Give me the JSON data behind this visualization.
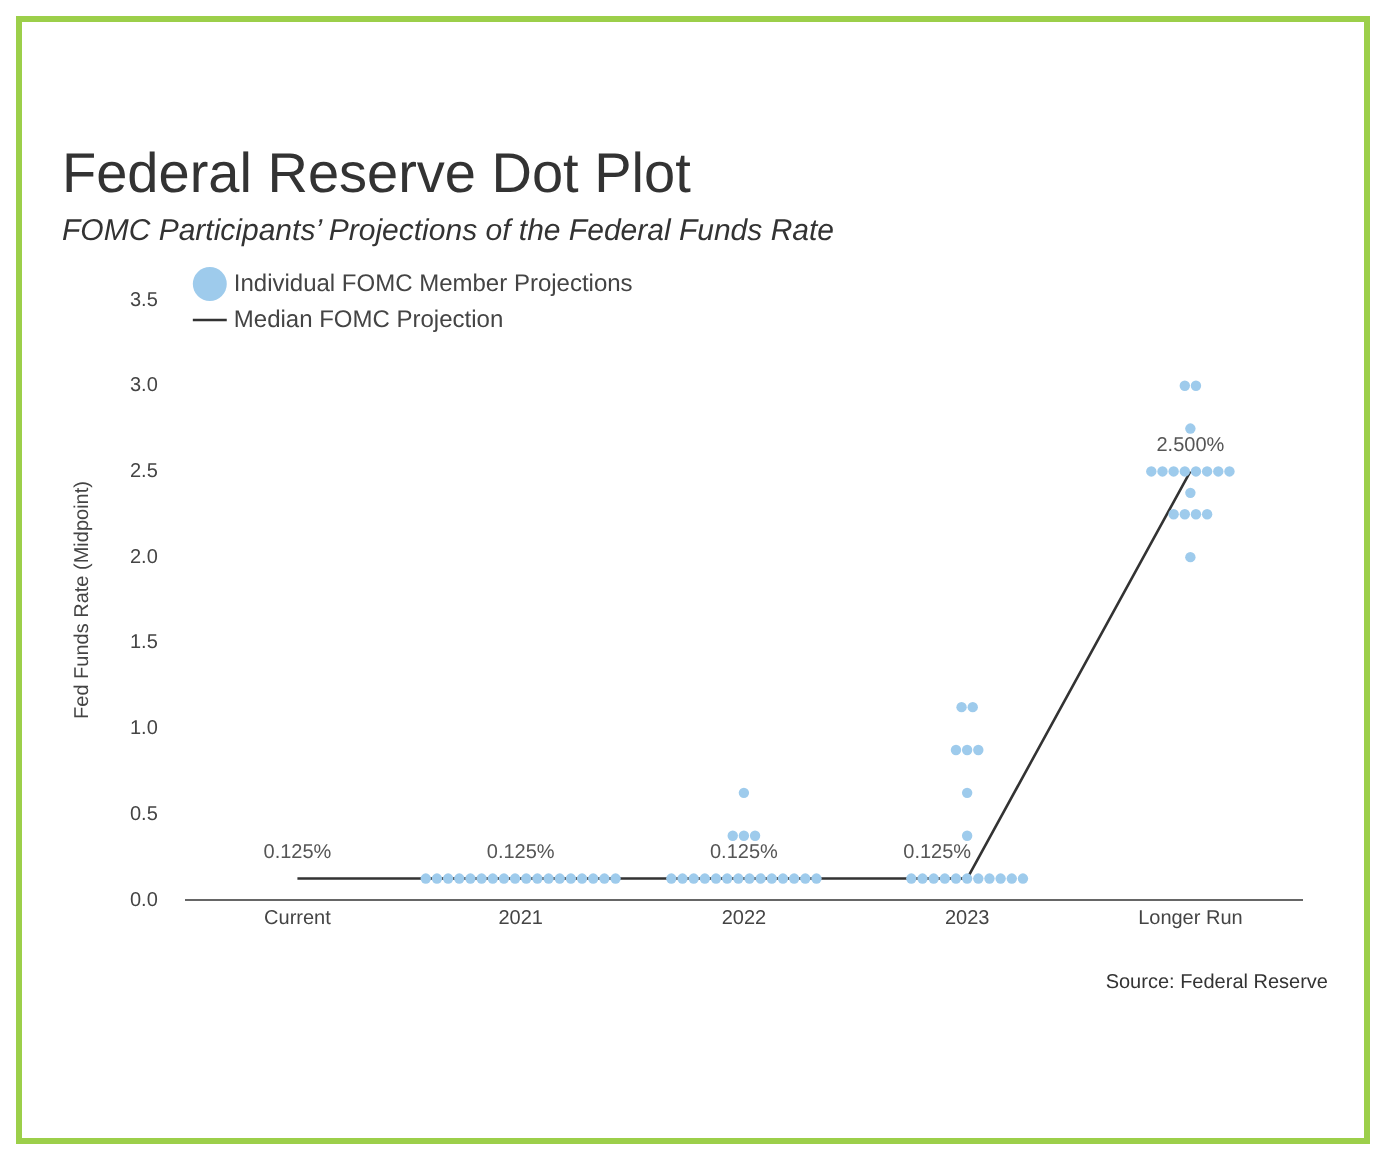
{
  "chart_data": {
    "type": "scatter",
    "title": "Federal Reserve Dot Plot",
    "subtitle": "FOMC Participants’ Projections of the Federal Funds Rate",
    "ylabel": "Fed Funds Rate (Midpoint)",
    "categories": [
      "Current",
      "2021",
      "2022",
      "2023",
      "Longer Run"
    ],
    "series": [
      {
        "name": "Individual FOMC Member Projections",
        "type": "scatter",
        "marker": "circle",
        "color": "#9ecbec",
        "values": [
          null,
          0.125,
          0.125,
          0.125,
          2.0
        ]
      },
      {
        "type": "scatter",
        "marker": "circle",
        "color": "#9ecbec",
        "values": [
          null,
          0.125,
          0.125,
          0.125,
          2.25
        ]
      },
      {
        "type": "scatter",
        "marker": "circle",
        "color": "#9ecbec",
        "values": [
          null,
          0.125,
          0.125,
          0.125,
          2.25
        ]
      },
      {
        "type": "scatter",
        "marker": "circle",
        "color": "#9ecbec",
        "values": [
          null,
          0.125,
          0.125,
          0.125,
          2.25
        ]
      },
      {
        "type": "scatter",
        "marker": "circle",
        "color": "#9ecbec",
        "values": [
          null,
          0.125,
          0.125,
          0.125,
          2.25
        ]
      },
      {
        "type": "scatter",
        "marker": "circle",
        "color": "#9ecbec",
        "values": [
          null,
          0.125,
          0.125,
          0.125,
          2.375
        ]
      },
      {
        "type": "scatter",
        "marker": "circle",
        "color": "#9ecbec",
        "values": [
          null,
          0.125,
          0.125,
          0.125,
          2.5
        ]
      },
      {
        "type": "scatter",
        "marker": "circle",
        "color": "#9ecbec",
        "values": [
          null,
          0.125,
          0.125,
          0.125,
          2.5
        ]
      },
      {
        "type": "scatter",
        "marker": "circle",
        "color": "#9ecbec",
        "values": [
          null,
          0.125,
          0.125,
          0.125,
          2.5
        ]
      },
      {
        "type": "scatter",
        "marker": "circle",
        "color": "#9ecbec",
        "values": [
          null,
          0.125,
          0.125,
          0.125,
          2.5
        ]
      },
      {
        "type": "scatter",
        "marker": "circle",
        "color": "#9ecbec",
        "values": [
          null,
          0.125,
          0.125,
          0.125,
          2.5
        ]
      },
      {
        "type": "scatter",
        "marker": "circle",
        "color": "#9ecbec",
        "values": [
          null,
          0.125,
          0.125,
          0.375,
          2.5
        ]
      },
      {
        "type": "scatter",
        "marker": "circle",
        "color": "#9ecbec",
        "values": [
          null,
          0.125,
          0.125,
          0.625,
          2.5
        ]
      },
      {
        "type": "scatter",
        "marker": "circle",
        "color": "#9ecbec",
        "values": [
          null,
          0.125,
          0.125,
          0.875,
          2.5
        ]
      },
      {
        "type": "scatter",
        "marker": "circle",
        "color": "#9ecbec",
        "values": [
          null,
          0.125,
          0.375,
          0.875,
          2.75
        ]
      },
      {
        "type": "scatter",
        "marker": "circle",
        "color": "#9ecbec",
        "values": [
          null,
          0.125,
          0.375,
          0.875,
          3.0
        ]
      },
      {
        "type": "scatter",
        "marker": "circle",
        "color": "#9ecbec",
        "values": [
          null,
          0.125,
          0.375,
          1.125,
          3.0
        ]
      },
      {
        "type": "scatter",
        "marker": "circle",
        "color": "#9ecbec",
        "values": [
          null,
          0.125,
          0.625,
          1.125,
          null
        ]
      },
      {
        "name": "Median FOMC Projection",
        "type": "line",
        "marker": "none",
        "color": "#333333",
        "values": [
          0.125,
          0.125,
          0.125,
          0.125,
          2.5
        ],
        "value_labels": [
          "0.125%",
          "0.125%",
          "0.125%",
          "0.125%",
          "2.500%"
        ]
      }
    ],
    "ylim": [
      0,
      3.5
    ],
    "yticks": [
      {
        "value": 0,
        "label": "0.0"
      },
      0.5,
      {
        "value": 1,
        "label": "1.0"
      },
      1.5,
      {
        "value": 2,
        "label": "2.0"
      },
      2.5,
      {
        "value": 3,
        "label": "3.0"
      },
      3.5
    ],
    "grid": false,
    "legend": "top left",
    "annotations": [
      "Source: Federal Reserve"
    ]
  }
}
